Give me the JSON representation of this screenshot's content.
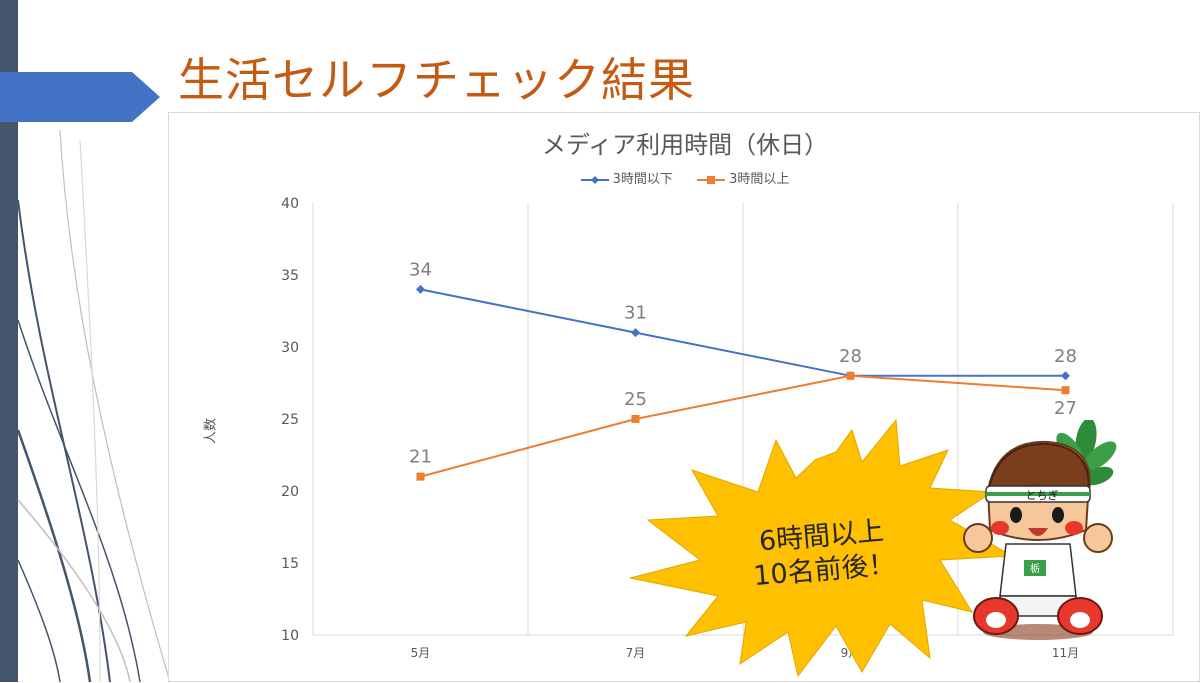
{
  "slide": {
    "title": "生活セルフチェック結果"
  },
  "chart_data": {
    "type": "line",
    "title": "メディア利用時間（休日）",
    "categories": [
      "5月",
      "7月",
      "9月",
      "11月"
    ],
    "ylabel": "人数",
    "xlabel": "",
    "ylim": [
      10,
      40
    ],
    "yticks": [
      10,
      15,
      20,
      25,
      30,
      35,
      40
    ],
    "grid": "vertical",
    "legend": "top-center",
    "series": [
      {
        "name": "3時間以下",
        "values": [
          34,
          31,
          28,
          28
        ],
        "color": "#4472c4",
        "marker": "diamond"
      },
      {
        "name": "3時間以上",
        "values": [
          21,
          25,
          28,
          27
        ],
        "color": "#ed7d31",
        "marker": "square"
      }
    ]
  },
  "callout": {
    "line1": "6時間以上",
    "line2": "10名前後！",
    "fill": "#ffc000"
  },
  "mascot": {
    "headband_text": "とちぎ",
    "badge_text": "栃"
  }
}
